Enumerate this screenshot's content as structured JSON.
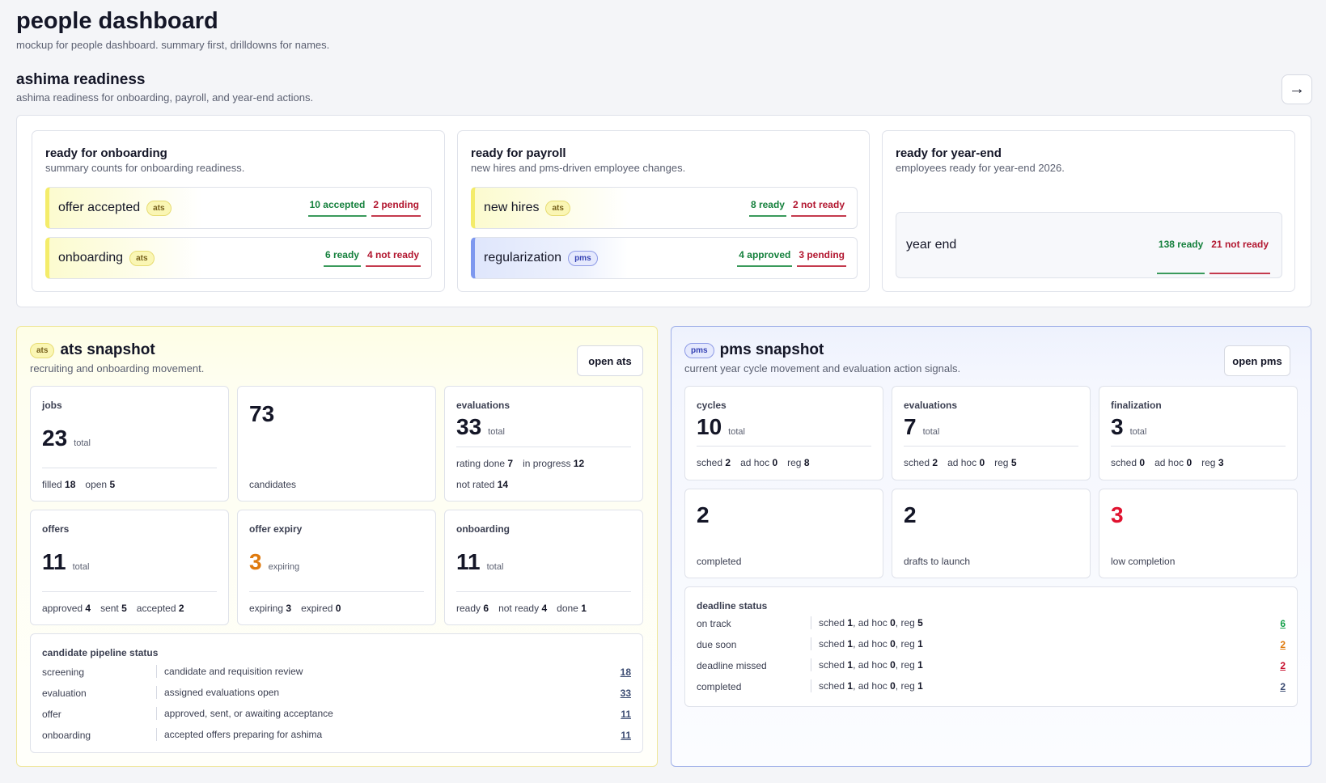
{
  "page": {
    "title": "people dashboard",
    "subtitle": "mockup for people dashboard. summary first, drilldowns for names."
  },
  "readiness": {
    "title": "ashima readiness",
    "subtitle": "ashima readiness for onboarding, payroll, and year-end actions.",
    "arrow": "→",
    "onboarding": {
      "title": "ready for onboarding",
      "subtitle": "summary counts for onboarding readiness.",
      "rows": [
        {
          "label": "offer accepted",
          "badge": "ats",
          "good": "10 accepted",
          "bad": "2 pending"
        },
        {
          "label": "onboarding",
          "badge": "ats",
          "good": "6 ready",
          "bad": "4 not ready"
        }
      ]
    },
    "payroll": {
      "title": "ready for payroll",
      "subtitle": "new hires and pms-driven employee changes.",
      "rows": [
        {
          "label": "new hires",
          "badge": "ats",
          "good": "8 ready",
          "bad": "2 not ready"
        },
        {
          "label": "regularization",
          "badge": "pms",
          "good": "4 approved",
          "bad": "3 pending"
        }
      ]
    },
    "yearend": {
      "title": "ready for year-end",
      "subtitle": "employees ready for year-end 2026.",
      "label": "year end",
      "good": "138 ready",
      "bad": "21 not ready"
    }
  },
  "ats": {
    "badge": "ats",
    "title": "ats snapshot",
    "subtitle": "recruiting and onboarding movement.",
    "button": "open ats",
    "jobs": {
      "label": "jobs",
      "value": "23",
      "unit": "total",
      "f1": "filled",
      "v1": "18",
      "f2": "open",
      "v2": "5"
    },
    "candidates": {
      "value": "73",
      "caption": "candidates"
    },
    "evaluations": {
      "label": "evaluations",
      "value": "33",
      "unit": "total",
      "f1": "rating done",
      "v1": "7",
      "f2": "in progress",
      "v2": "12",
      "f3": "not rated",
      "v3": "14"
    },
    "offers": {
      "label": "offers",
      "value": "11",
      "unit": "total",
      "f1": "approved",
      "v1": "4",
      "f2": "sent",
      "v2": "5",
      "f3": "accepted",
      "v3": "2"
    },
    "expiry": {
      "label": "offer expiry",
      "value": "3",
      "unit": "expiring",
      "f1": "expiring",
      "v1": "3",
      "f2": "expired",
      "v2": "0"
    },
    "onboarding": {
      "label": "onboarding",
      "value": "11",
      "unit": "total",
      "f1": "ready",
      "v1": "6",
      "f2": "not ready",
      "v2": "4",
      "f3": "done",
      "v3": "1"
    },
    "pipeline": {
      "title": "candidate pipeline status",
      "rows": [
        {
          "stage": "screening",
          "desc": "candidate and requisition review",
          "count": "18"
        },
        {
          "stage": "evaluation",
          "desc": "assigned evaluations open",
          "count": "33"
        },
        {
          "stage": "offer",
          "desc": "approved, sent, or awaiting acceptance",
          "count": "11"
        },
        {
          "stage": "onboarding",
          "desc": "accepted offers preparing for ashima",
          "count": "11"
        }
      ]
    }
  },
  "pms": {
    "badge": "pms",
    "title": "pms snapshot",
    "subtitle": "current year cycle movement and evaluation action signals.",
    "button": "open pms",
    "cycles": {
      "label": "cycles",
      "value": "10",
      "unit": "total",
      "f1": "sched",
      "v1": "2",
      "f2": "ad hoc",
      "v2": "0",
      "f3": "reg",
      "v3": "8"
    },
    "evaluations": {
      "label": "evaluations",
      "value": "7",
      "unit": "total",
      "f1": "sched",
      "v1": "2",
      "f2": "ad hoc",
      "v2": "0",
      "f3": "reg",
      "v3": "5"
    },
    "finalization": {
      "label": "finalization",
      "value": "3",
      "unit": "total",
      "f1": "sched",
      "v1": "0",
      "f2": "ad hoc",
      "v2": "0",
      "f3": "reg",
      "v3": "3"
    },
    "completed": {
      "value": "2",
      "caption": "completed"
    },
    "drafts": {
      "value": "2",
      "caption": "drafts to launch"
    },
    "low": {
      "value": "3",
      "caption": "low completion"
    },
    "deadline": {
      "title": "deadline status",
      "rows": [
        {
          "status": "on track",
          "sched": "1",
          "adhoc": "0",
          "reg": "5",
          "count": "6"
        },
        {
          "status": "due soon",
          "sched": "1",
          "adhoc": "0",
          "reg": "1",
          "count": "2"
        },
        {
          "status": "deadline missed",
          "sched": "1",
          "adhoc": "0",
          "reg": "1",
          "count": "2"
        },
        {
          "status": "completed",
          "sched": "1",
          "adhoc": "0",
          "reg": "1",
          "count": "2"
        }
      ]
    }
  },
  "labels": {
    "sched": "sched",
    "adhoc": "ad hoc",
    "reg": "reg"
  }
}
